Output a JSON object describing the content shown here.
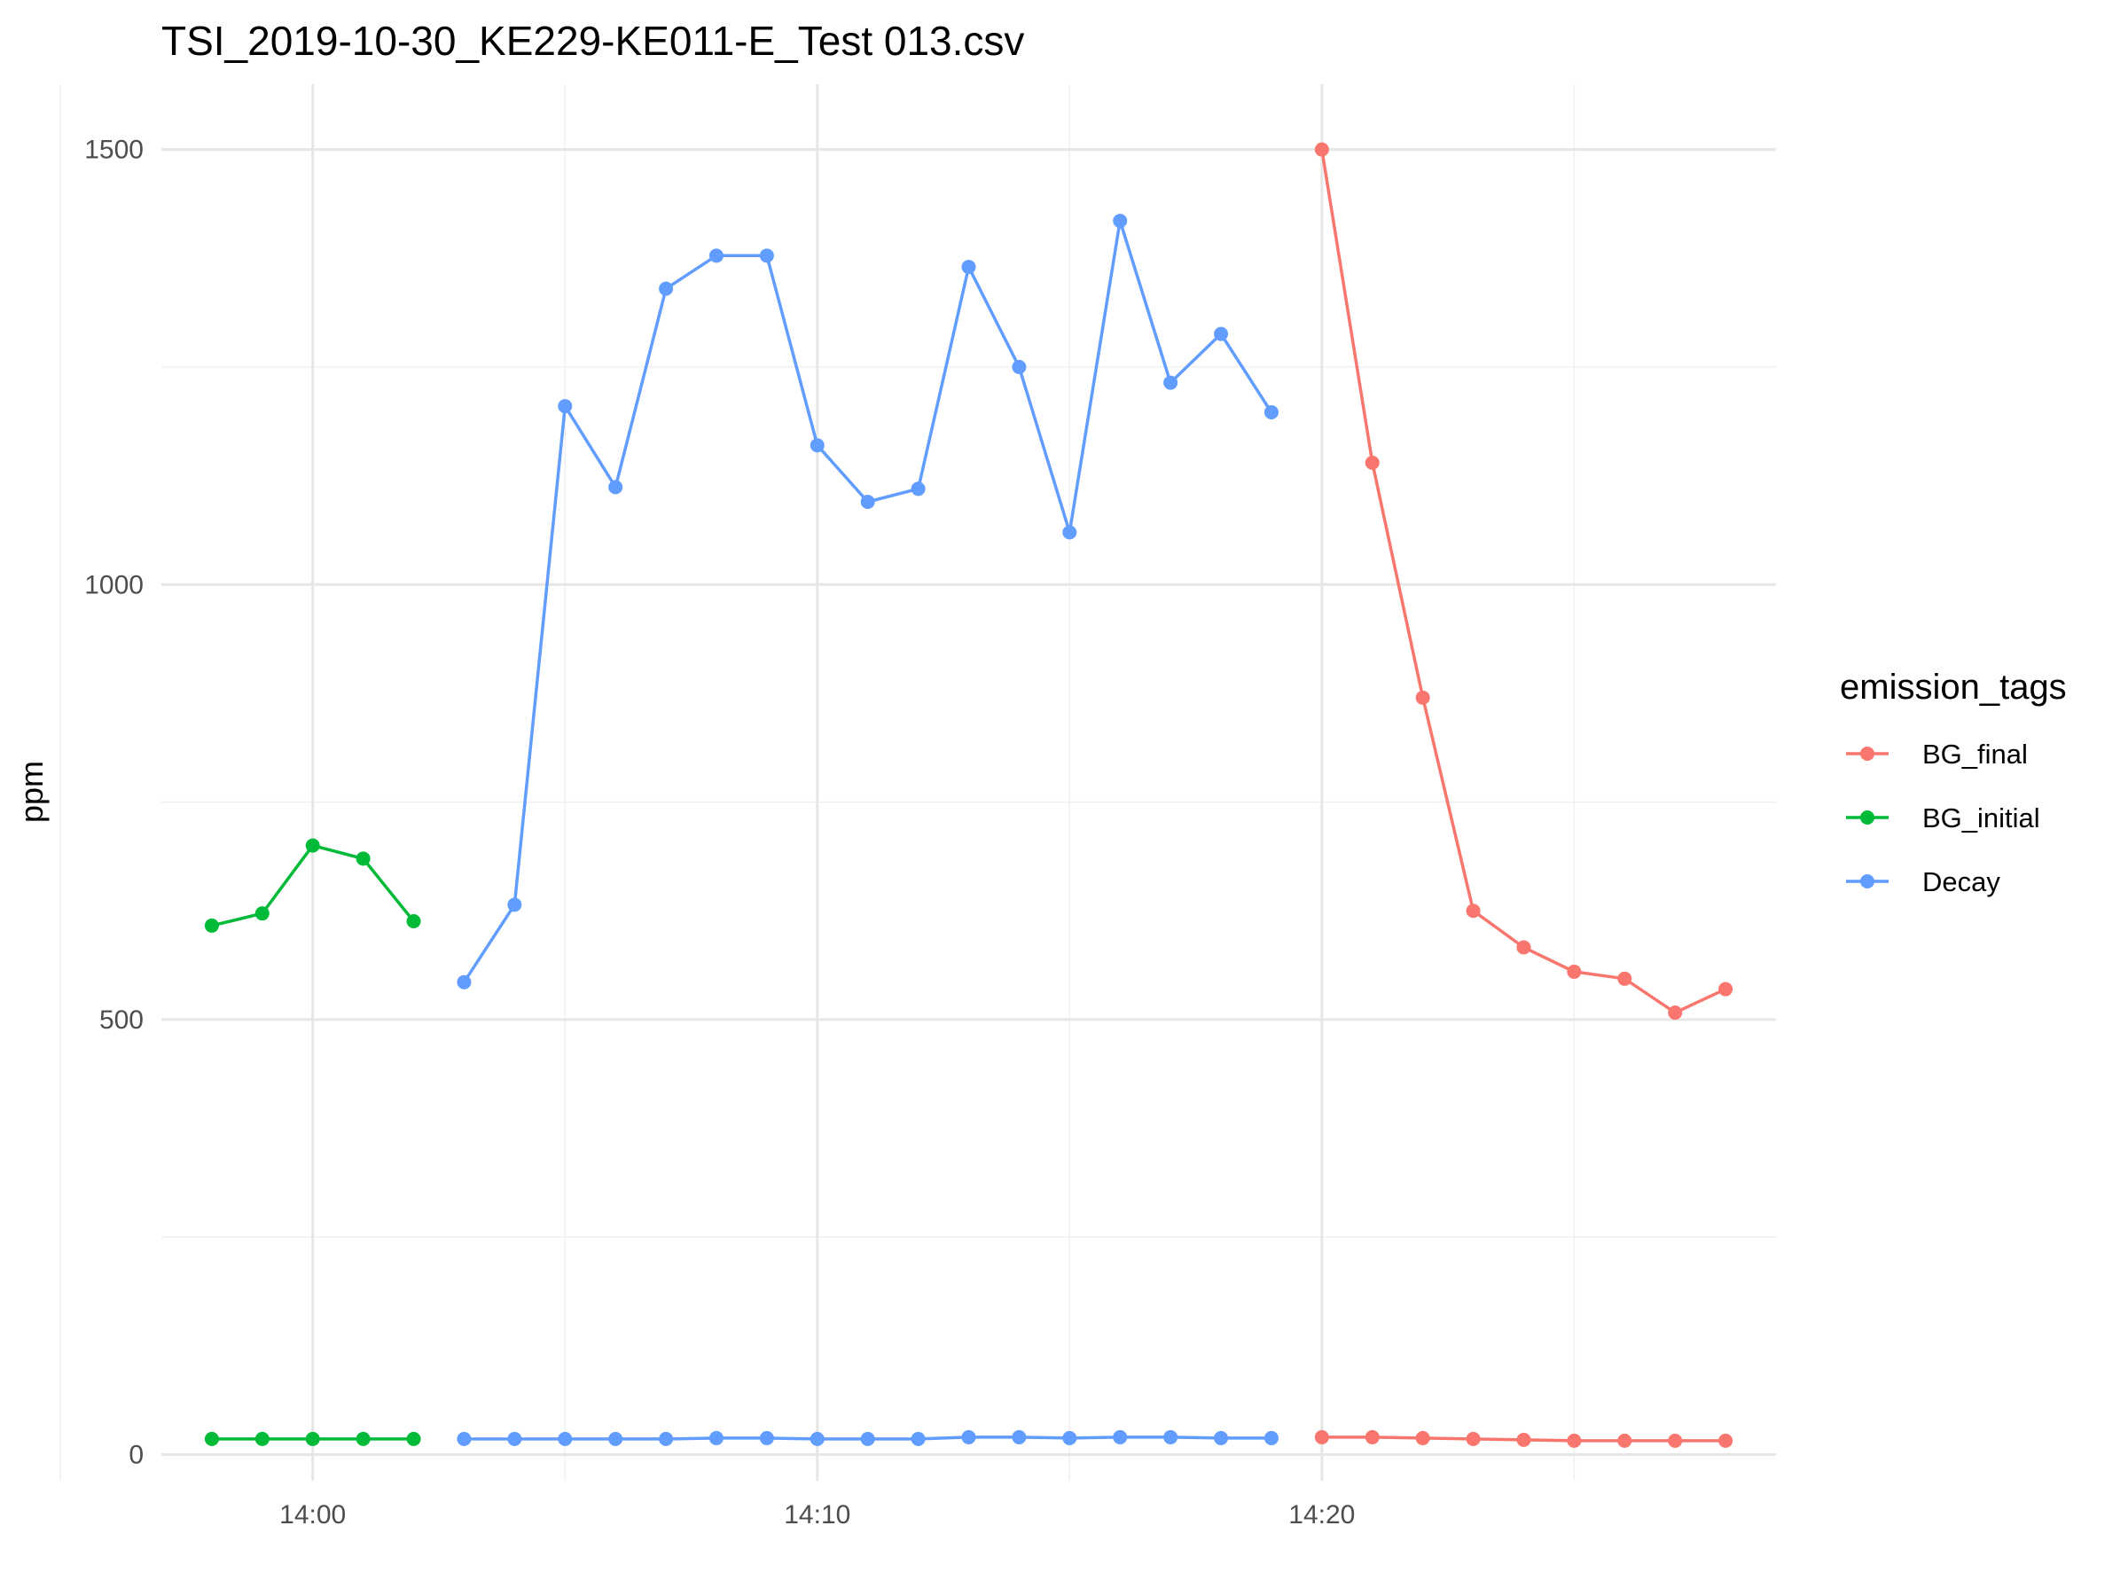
{
  "chart_data": {
    "type": "line",
    "title": "TSI_2019-10-30_KE229-KE011-E_Test 013.csv",
    "xlabel": "",
    "ylabel": "ppm",
    "x_ticks": [
      "14:00",
      "14:10",
      "14:20"
    ],
    "y_ticks": [
      0,
      500,
      1000,
      1500
    ],
    "xlim": [
      "13:57",
      "14:29"
    ],
    "ylim": [
      -30,
      1575
    ],
    "grid": true,
    "legend": {
      "title": "emission_tags",
      "position": "right"
    },
    "series": [
      {
        "name": "BG_final",
        "color": "#F8766D",
        "lines": [
          {
            "x": [
              "14:20",
              "14:21",
              "14:22",
              "14:23",
              "14:24",
              "14:25",
              "14:26",
              "14:27",
              "14:28"
            ],
            "y": [
              1500,
              1140,
              870,
              625,
              583,
              555,
              547,
              508,
              535
            ]
          },
          {
            "x": [
              "14:20",
              "14:21",
              "14:22",
              "14:23",
              "14:24",
              "14:25",
              "14:26",
              "14:27",
              "14:28"
            ],
            "y": [
              20,
              20,
              19,
              18,
              17,
              16,
              16,
              16,
              16
            ]
          }
        ]
      },
      {
        "name": "BG_initial",
        "color": "#00BA38",
        "lines": [
          {
            "x": [
              "13:58",
              "13:59",
              "14:00",
              "14:01",
              "14:02"
            ],
            "y": [
              608,
              622,
              700,
              685,
              613
            ]
          },
          {
            "x": [
              "13:58",
              "13:59",
              "14:00",
              "14:01",
              "14:02"
            ],
            "y": [
              18,
              18,
              18,
              18,
              18
            ]
          }
        ]
      },
      {
        "name": "Decay",
        "color": "#619CFF",
        "lines": [
          {
            "x": [
              "14:03",
              "14:04",
              "14:05",
              "14:06",
              "14:07",
              "14:08",
              "14:09",
              "14:10",
              "14:11",
              "14:12",
              "14:13",
              "14:14",
              "14:15",
              "14:16",
              "14:17",
              "14:18",
              "14:19"
            ],
            "y": [
              543,
              632,
              1205,
              1112,
              1340,
              1378,
              1378,
              1160,
              1095,
              1110,
              1365,
              1250,
              1060,
              1418,
              1232,
              1288,
              1198
            ]
          },
          {
            "x": [
              "14:03",
              "14:04",
              "14:05",
              "14:06",
              "14:07",
              "14:08",
              "14:09",
              "14:10",
              "14:11",
              "14:12",
              "14:13",
              "14:14",
              "14:15",
              "14:16",
              "14:17",
              "14:18",
              "14:19"
            ],
            "y": [
              18,
              18,
              18,
              18,
              18,
              19,
              19,
              18,
              18,
              18,
              20,
              20,
              19,
              20,
              20,
              19,
              19
            ]
          }
        ]
      }
    ]
  }
}
